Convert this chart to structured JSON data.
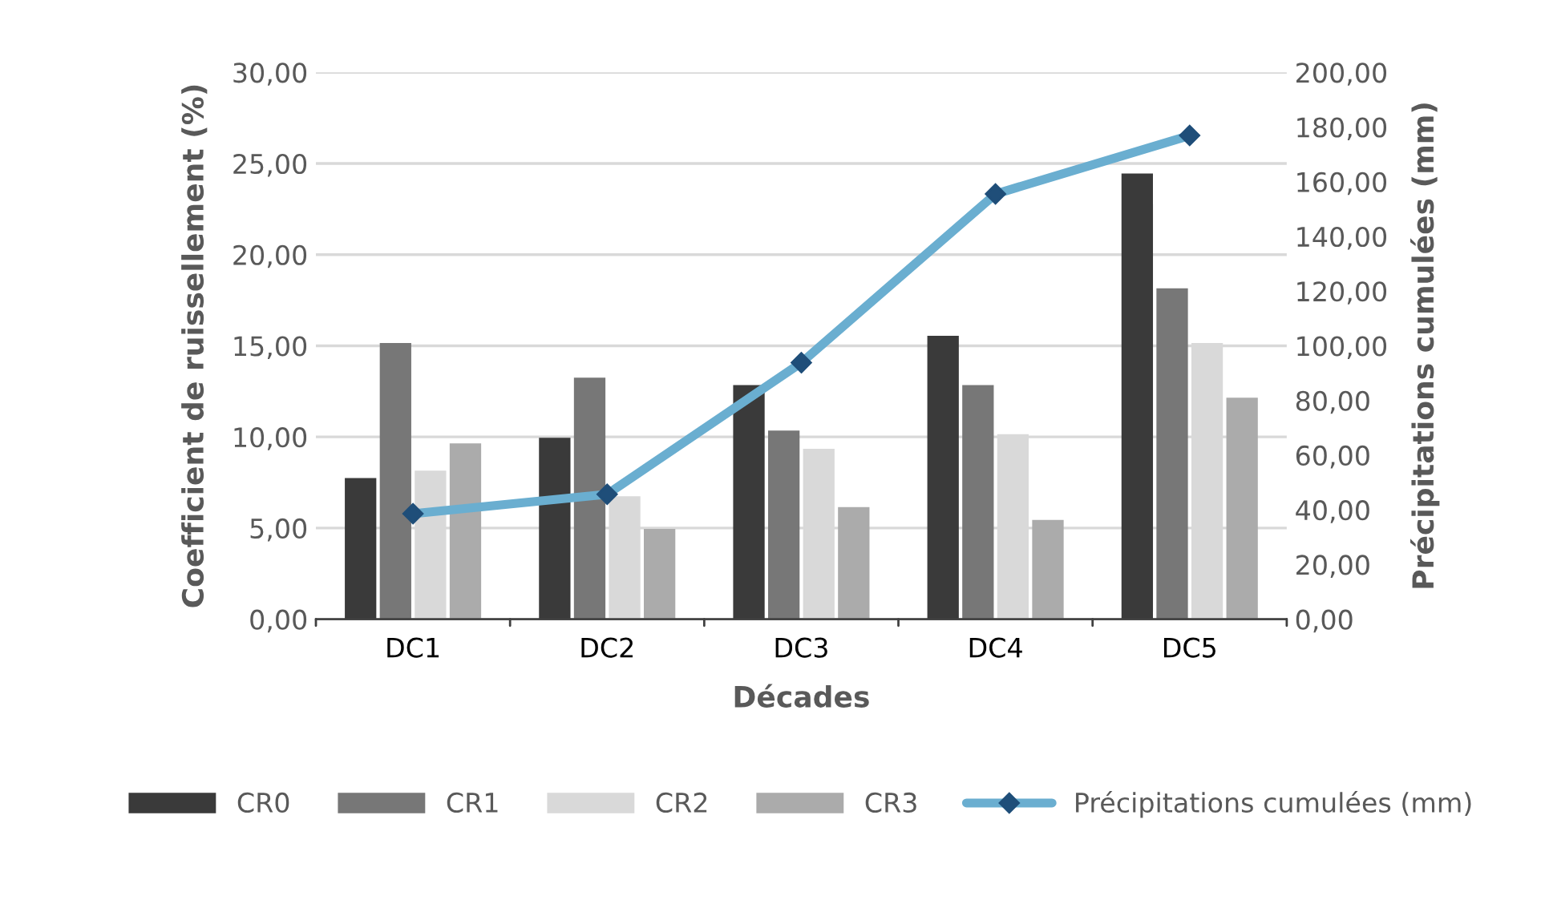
{
  "chart_data": {
    "type": "bar",
    "xlabel": "Décades",
    "ylabel": "Coefficient de ruissellement (%)",
    "y2label": "Précipitations cumulées (mm)",
    "categories": [
      "DC1",
      "DC2",
      "DC3",
      "DC4",
      "DC5"
    ],
    "series": [
      {
        "name": "CR0",
        "color": "#3a3a3a",
        "values": [
          7.7,
          9.9,
          12.8,
          15.5,
          24.4
        ]
      },
      {
        "name": "CR1",
        "color": "#777777",
        "values": [
          15.1,
          13.2,
          10.3,
          12.8,
          18.1
        ]
      },
      {
        "name": "CR2",
        "color": "#d9d9d9",
        "values": [
          8.1,
          6.7,
          9.3,
          10.1,
          15.1
        ]
      },
      {
        "name": "CR3",
        "color": "#ababab",
        "values": [
          9.6,
          4.9,
          6.1,
          5.4,
          12.1
        ]
      },
      {
        "name": "Précipitations cumulées (mm)",
        "type": "line",
        "axis": "y2",
        "color": "#6aaed0",
        "marker": "diamond",
        "values": [
          38.6,
          45.7,
          93.8,
          155.5,
          176.9
        ]
      }
    ],
    "ylim": [
      0,
      30
    ],
    "yticks": [
      {
        "value": 0,
        "label": "0,00"
      },
      {
        "value": 5,
        "label": "5,00"
      },
      {
        "value": 10,
        "label": "10,00"
      },
      {
        "value": 15,
        "label": "15,00"
      },
      {
        "value": 20,
        "label": "20,00"
      },
      {
        "value": 25,
        "label": "25,00"
      },
      {
        "value": 30,
        "label": "30,00"
      }
    ],
    "y2lim": [
      0,
      200
    ],
    "y2ticks": [
      {
        "value": 0,
        "label": "0,00"
      },
      {
        "value": 20,
        "label": "20,00"
      },
      {
        "value": 40,
        "label": "40,00"
      },
      {
        "value": 60,
        "label": "60,00"
      },
      {
        "value": 80,
        "label": "80,00"
      },
      {
        "value": 100,
        "label": "100,00"
      },
      {
        "value": 120,
        "label": "120,00"
      },
      {
        "value": 140,
        "label": "140,00"
      },
      {
        "value": 160,
        "label": "160,00"
      },
      {
        "value": 180,
        "label": "180,00"
      },
      {
        "value": 200,
        "label": "200,00"
      }
    ],
    "grid": "y",
    "legend": "bottom"
  }
}
